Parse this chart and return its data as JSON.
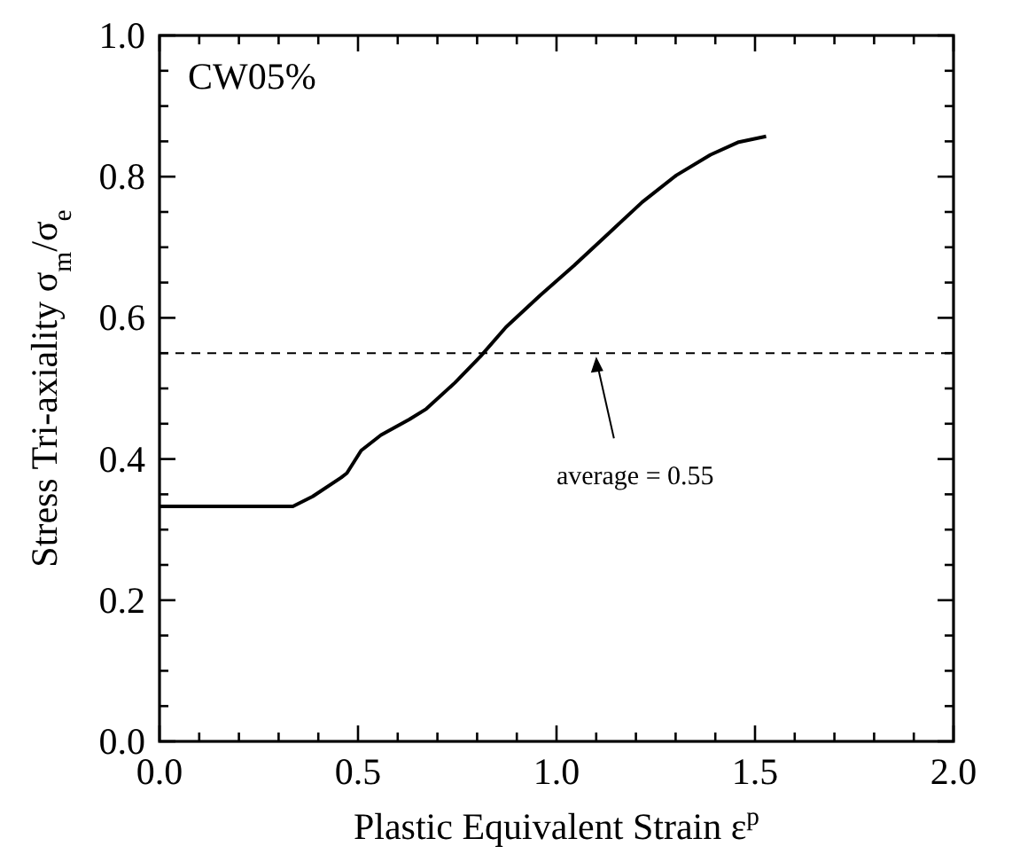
{
  "chart_data": {
    "type": "line",
    "title": "CW05%",
    "xlabel": "Plastic Equivalent Strain ε$^{p}$",
    "ylabel": "Stress Tri-axiality σ$_{m}$/σ$_{e}$",
    "x": [
      0,
      0.336,
      0.386,
      0.458,
      0.472,
      0.508,
      0.558,
      0.629,
      0.672,
      0.744,
      0.808,
      0.873,
      0.959,
      1.044,
      1.13,
      1.216,
      1.302,
      1.388,
      1.459,
      1.528
    ],
    "series": [
      {
        "color": "#000000",
        "values": [
          0.333,
          0.333,
          0.347,
          0.374,
          0.38,
          0.412,
          0.434,
          0.456,
          0.471,
          0.508,
          0.545,
          0.587,
          0.632,
          0.674,
          0.719,
          0.764,
          0.802,
          0.831,
          0.849,
          0.857
        ]
      }
    ],
    "xlim": [
      0,
      2
    ],
    "ylim": [
      0,
      1
    ],
    "xticks": [
      {
        "value": 0,
        "label": "0.0"
      },
      {
        "value": 0.1,
        "label": null
      },
      {
        "value": 0.2,
        "label": null
      },
      {
        "value": 0.3,
        "label": null
      },
      {
        "value": 0.4,
        "label": null
      },
      0.5,
      {
        "value": 0.6,
        "label": null
      },
      {
        "value": 0.7,
        "label": null
      },
      {
        "value": 0.8,
        "label": null
      },
      {
        "value": 0.9,
        "label": null
      },
      {
        "value": 1,
        "label": "1.0"
      },
      {
        "value": 1.1,
        "label": null
      },
      {
        "value": 1.2,
        "label": null
      },
      {
        "value": 1.3,
        "label": null
      },
      {
        "value": 1.4,
        "label": null
      },
      1.5,
      {
        "value": 1.6,
        "label": null
      },
      {
        "value": 1.7,
        "label": null
      },
      {
        "value": 1.8,
        "label": null
      },
      {
        "value": 1.9,
        "label": null
      },
      {
        "value": 2,
        "label": "2.0"
      }
    ],
    "yticks": [
      {
        "value": 0,
        "label": "0.0"
      },
      {
        "value": 0.05,
        "label": null
      },
      {
        "value": 0.1,
        "label": null
      },
      {
        "value": 0.15,
        "label": null
      },
      0.2,
      {
        "value": 0.25,
        "label": null
      },
      {
        "value": 0.3,
        "label": null
      },
      {
        "value": 0.35,
        "label": null
      },
      0.4,
      {
        "value": 0.45,
        "label": null
      },
      {
        "value": 0.5,
        "label": null
      },
      {
        "value": 0.55,
        "label": null
      },
      0.6,
      {
        "value": 0.65,
        "label": null
      },
      {
        "value": 0.7,
        "label": null
      },
      {
        "value": 0.75,
        "label": null
      },
      0.8,
      {
        "value": 0.85,
        "label": null
      },
      {
        "value": 0.9,
        "label": null
      },
      {
        "value": 0.95,
        "label": null
      },
      {
        "value": 1,
        "label": "1.0"
      }
    ],
    "ref_lines": [
      {
        "axis": "y",
        "value": 0.55,
        "label": "average = 0.55",
        "line_style": "dashed",
        "color": "#000000"
      }
    ],
    "grid": false,
    "line_style": "solid"
  }
}
